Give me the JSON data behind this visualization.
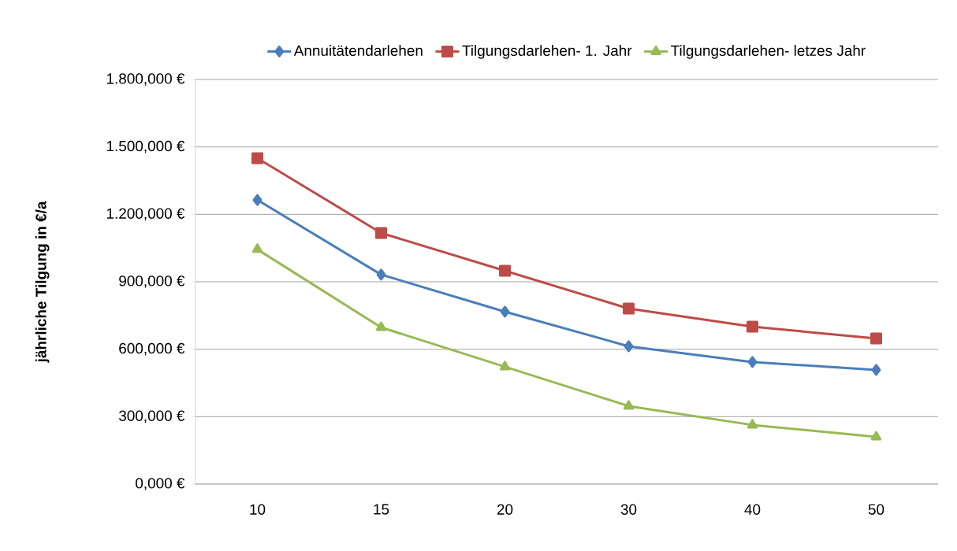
{
  "chart_data": {
    "type": "line",
    "ylabel": "jährliche Tilgung in €/a",
    "categories": [
      "10",
      "15",
      "20",
      "30",
      "40",
      "50"
    ],
    "series": [
      {
        "name": "Annuitätendarlehen",
        "color": "#4a7ebb",
        "marker": "diamond",
        "values": [
          1264,
          932,
          767,
          613,
          543,
          508
        ]
      },
      {
        "name": "Tilgungsdarlehen- 1. Jahr",
        "color": "#be4b48",
        "marker": "square",
        "values": [
          1450,
          1117,
          949,
          781,
          700,
          648
        ]
      },
      {
        "name": "Tilgungsdarlehen- letzes Jahr",
        "color": "#98b954",
        "marker": "triangle",
        "values": [
          1044,
          697,
          522,
          347,
          263,
          210
        ]
      }
    ],
    "ylim": [
      0,
      1800
    ],
    "yticks": [
      {
        "value": 0,
        "label": "0,000 €"
      },
      {
        "value": 300,
        "label": "300,000 €"
      },
      {
        "value": 600,
        "label": "600,000 €"
      },
      {
        "value": 900,
        "label": "900,000 €"
      },
      {
        "value": 1200,
        "label": "1.200,000 €"
      },
      {
        "value": 1500,
        "label": "1.500,000 €"
      },
      {
        "value": 1800,
        "label": "1.800,000 €"
      }
    ],
    "grid": "y",
    "legend": "top",
    "line_style": "solid"
  }
}
